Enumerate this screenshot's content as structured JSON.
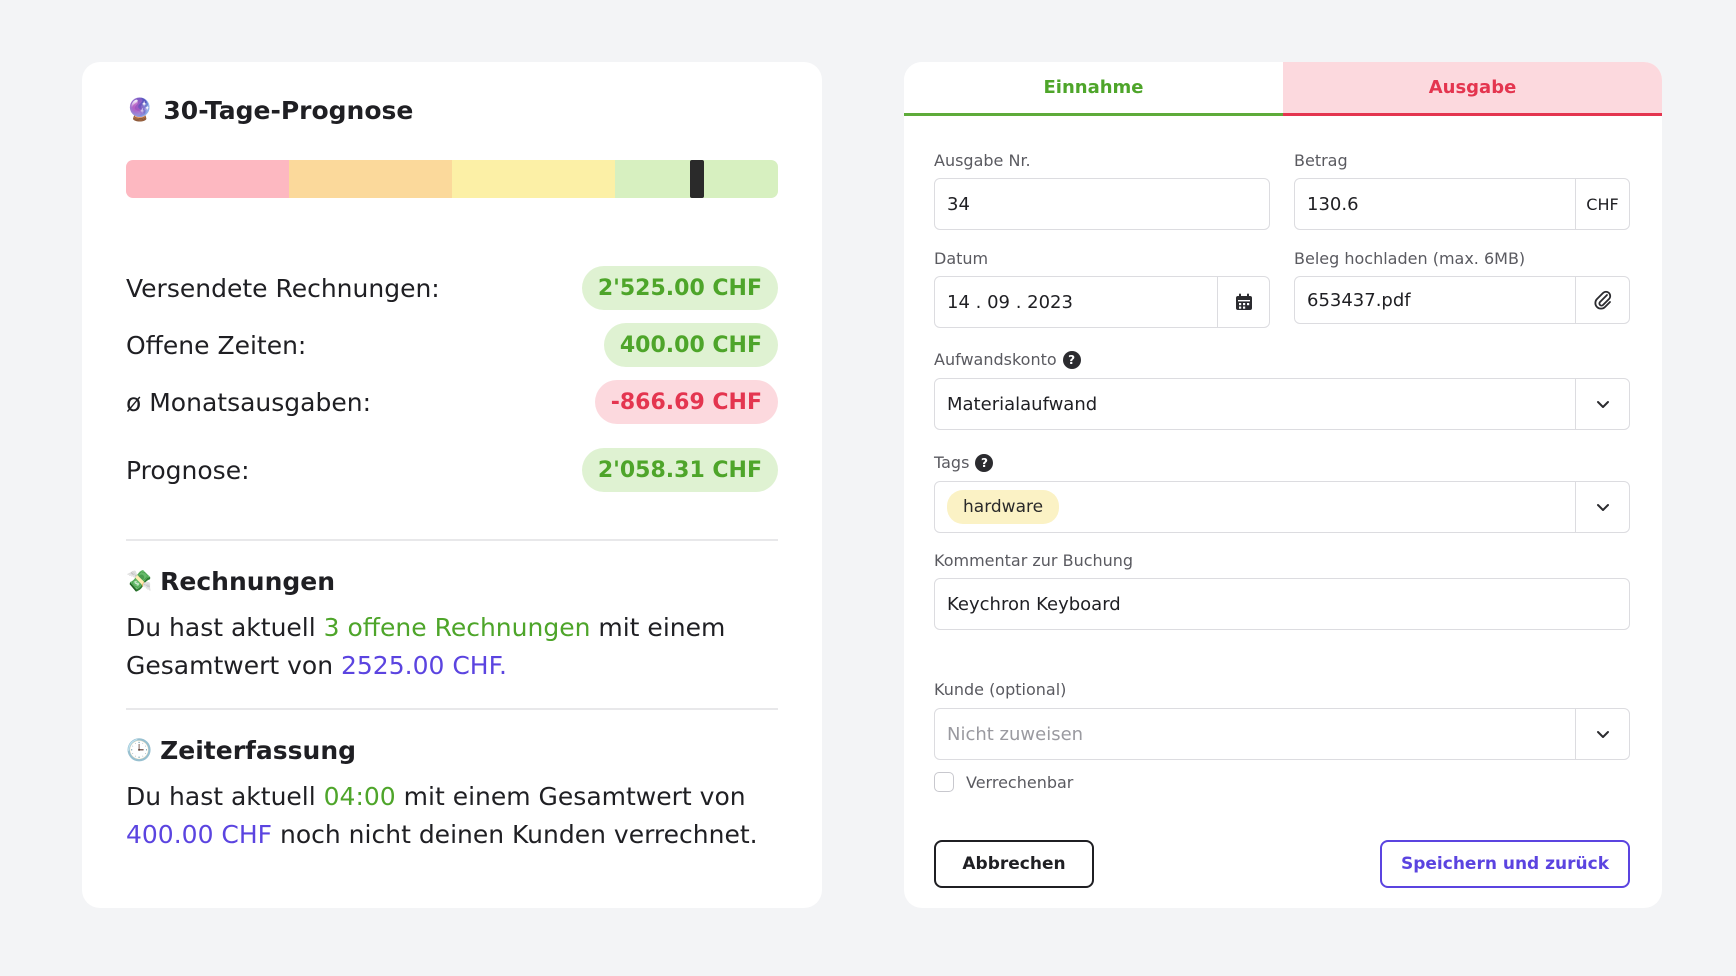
{
  "forecast": {
    "title": "30-Tage-Prognose",
    "emoji": "🔮",
    "bar_colors": [
      "#fdb8c1",
      "#fbd99b",
      "#fcf0a6",
      "#d7f0c0"
    ],
    "marker_fraction": 0.875
  },
  "stats": [
    {
      "label": "Versendete Rechnungen:",
      "value": "2'525.00 CHF",
      "tone": "green"
    },
    {
      "label": "Offene Zeiten:",
      "value": "400.00 CHF",
      "tone": "green"
    },
    {
      "label": "ø Monatsausgaben:",
      "value": "-866.69 CHF",
      "tone": "red"
    },
    {
      "label": "Prognose:",
      "value": "2'058.31 CHF",
      "tone": "green"
    }
  ],
  "invoices": {
    "emoji": "💸",
    "title": "Rechnungen",
    "text_1": "Du hast aktuell ",
    "highlight_1": "3 offene Rechnungen",
    "text_2": " mit einem Gesamtwert von ",
    "highlight_2": "2525.00 CHF."
  },
  "time": {
    "emoji": "🕒",
    "title": "Zeiterfassung",
    "text_1": "Du hast aktuell ",
    "highlight_1": "04:00",
    "text_2": " mit einem Gesamtwert von ",
    "highlight_2": "400.00 CHF",
    "text_3": " noch nicht deinen Kunden verrechnet."
  },
  "tabs": {
    "income": "Einnahme",
    "expense": "Ausgabe"
  },
  "form": {
    "number_label": "Ausgabe Nr.",
    "number_value": "34",
    "amount_label": "Betrag",
    "amount_value": "130.6",
    "currency": "CHF",
    "date_label": "Datum",
    "date_value": "14 . 09 . 2023",
    "upload_label": "Beleg hochladen (max. 6MB)",
    "upload_value": "653437.pdf",
    "account_label": "Aufwandskonto",
    "account_value": "Materialaufwand",
    "tags_label": "Tags",
    "tag_value": "hardware",
    "comment_label": "Kommentar zur Buchung",
    "comment_value": "Keychron Keyboard",
    "customer_label": "Kunde (optional)",
    "customer_placeholder": "Nicht zuweisen",
    "billable_label": "Verrechenbar",
    "help_glyph": "?",
    "cancel_label": "Abbrechen",
    "save_label": "Speichern und zurück"
  }
}
